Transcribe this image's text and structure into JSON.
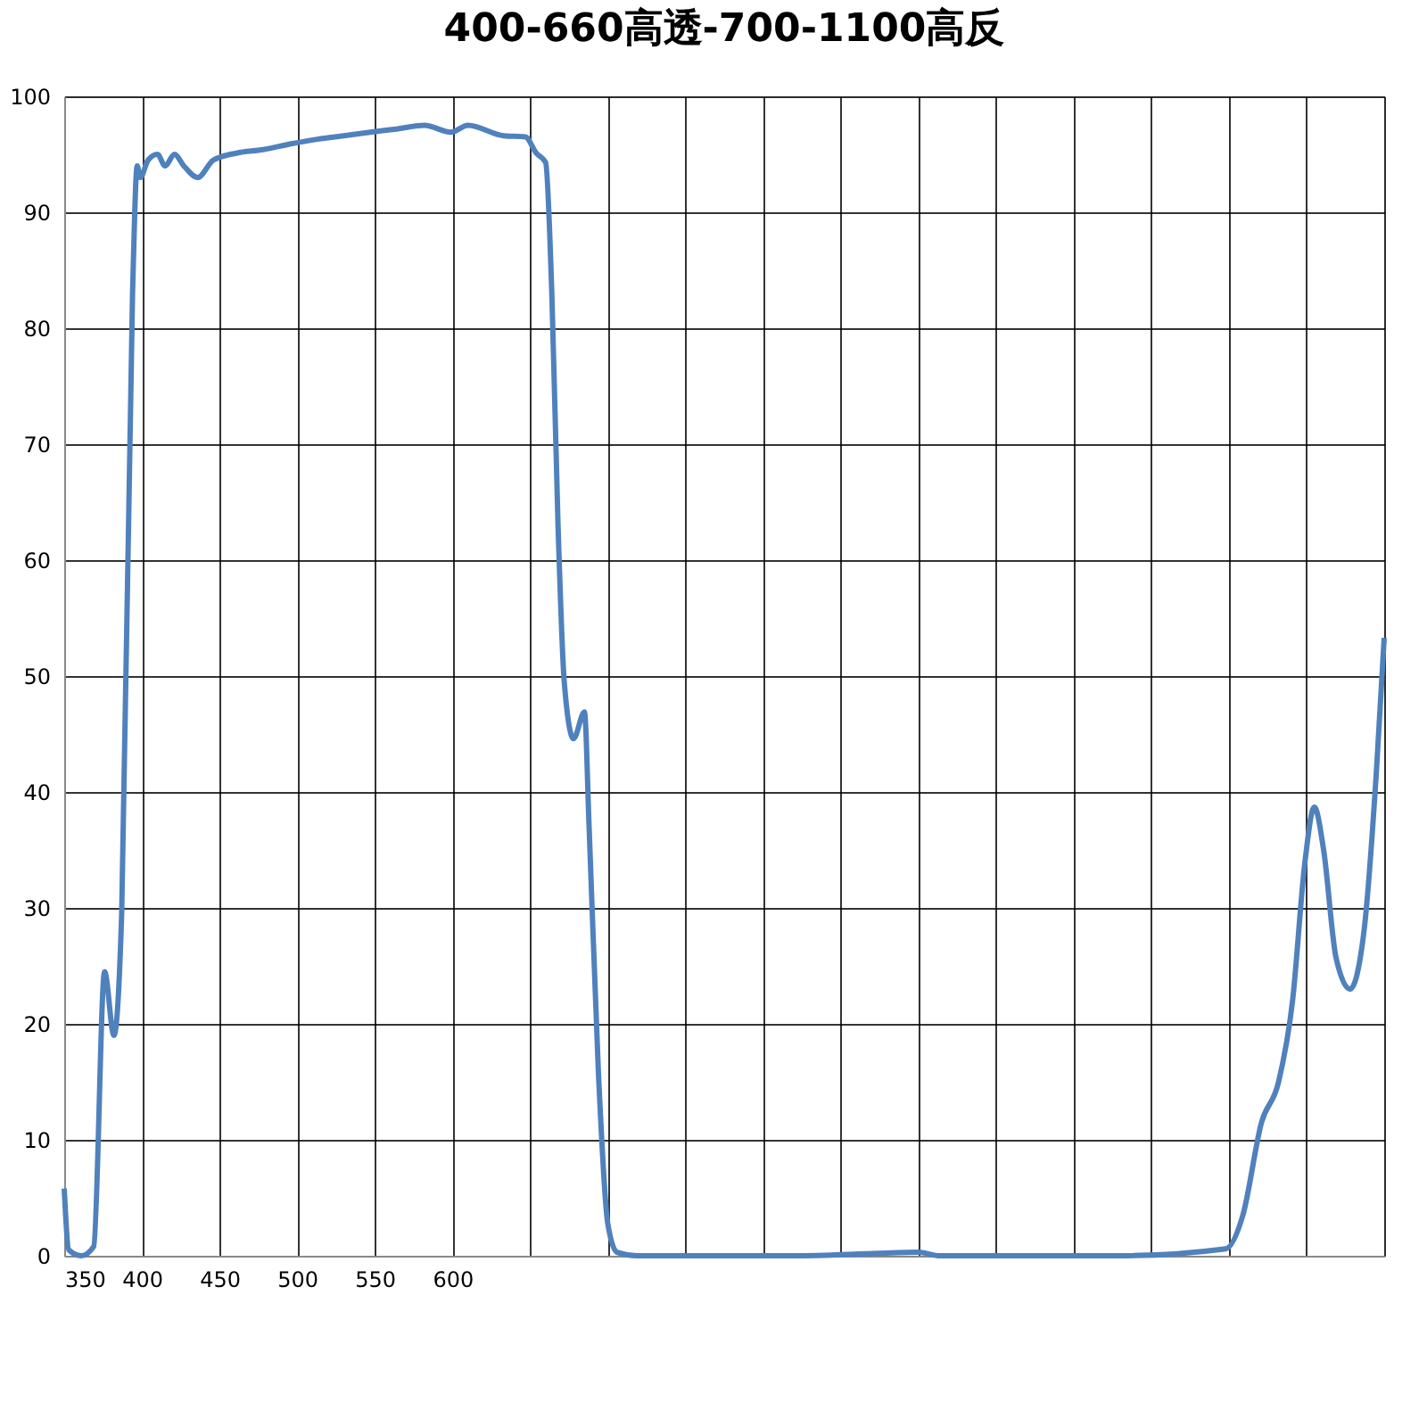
{
  "chart_data": {
    "type": "line",
    "title": "400-660高透-700-1100高反",
    "x": [
      350,
      353,
      361,
      369,
      376,
      382,
      387,
      394,
      397,
      399,
      404,
      410,
      415,
      421,
      427,
      436,
      446,
      461,
      478,
      496,
      513,
      530,
      547,
      565,
      582,
      599,
      610,
      633,
      647,
      654,
      660,
      664,
      668,
      672,
      678,
      685,
      688,
      694,
      700,
      706,
      719,
      823,
      900,
      914,
      1029,
      1098,
      1109,
      1121,
      1132,
      1141,
      1149,
      1155,
      1161,
      1169,
      1178,
      1187,
      1195,
      1200
    ],
    "series": [
      {
        "color": "#4f81bd",
        "values": [
          5.8,
          0.5,
          0,
          0.8,
          24.5,
          19,
          29.5,
          83,
          94,
          93,
          94.5,
          95,
          94,
          95,
          94,
          93,
          94.5,
          95.1,
          95.4,
          95.9,
          96.3,
          96.6,
          96.9,
          97.2,
          97.5,
          96.9,
          97.5,
          96.6,
          96.5,
          95.1,
          94.3,
          83,
          63,
          49.5,
          44.6,
          46.9,
          37,
          15.8,
          2.8,
          0.3,
          0,
          0,
          0.3,
          0,
          0,
          0.6,
          3.5,
          11.5,
          15,
          22,
          34,
          38.7,
          35,
          25.7,
          23,
          28,
          41.8,
          53.3
        ]
      }
    ],
    "xlim": [
      350,
      1200
    ],
    "xticks": [
      350,
      400,
      450,
      500,
      550,
      600,
      {
        "value": 650,
        "label": null
      },
      {
        "value": 700,
        "label": null
      },
      {
        "value": 750,
        "label": null
      },
      {
        "value": 800,
        "label": null
      },
      {
        "value": 850,
        "label": null
      },
      {
        "value": 900,
        "label": null
      },
      {
        "value": 950,
        "label": null
      },
      {
        "value": 1000,
        "label": null
      },
      {
        "value": 1050,
        "label": null
      },
      {
        "value": 1100,
        "label": null
      },
      {
        "value": 1150,
        "label": null
      },
      {
        "value": 1200,
        "label": null
      }
    ],
    "ylim": [
      0,
      100
    ],
    "yticks": [
      0,
      10,
      20,
      30,
      40,
      50,
      60,
      70,
      80,
      90,
      100
    ],
    "grid": true,
    "marker": "none",
    "line_style": "solid"
  }
}
